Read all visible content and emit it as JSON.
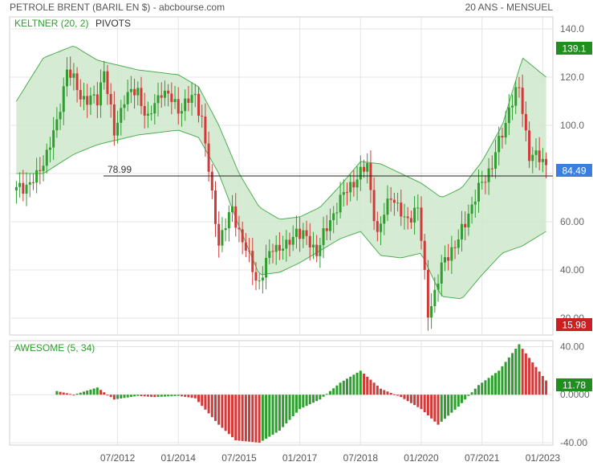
{
  "header": {
    "title": "PETROLE BRENT (BARIL EN $) - abcbourse.com",
    "period": "20 ANS - MENSUEL"
  },
  "indicators": {
    "keltner": "KELTNER (20, 2)",
    "pivots": "PIVOTS",
    "awesome": "AWESOME (5, 34)"
  },
  "colors": {
    "up": "#2e9e2e",
    "down": "#d23a3a",
    "band_fill": "#cfe8cb",
    "band_line": "#4caf50",
    "price_badge": "#3a7fe0",
    "max_badge": "#1f8f1f",
    "min_badge": "#cc1f1f",
    "ao_badge": "#1f8f1f",
    "grid": "#e4e4e4"
  },
  "chart_data": [
    {
      "type": "candlestick",
      "title": "PETROLE BRENT (BARIL EN $)",
      "x": [
        "07/2012",
        "01/2014",
        "07/2015",
        "01/2017",
        "07/2018",
        "01/2020",
        "07/2021",
        "01/2023"
      ],
      "y_ticks": [
        "20.00",
        "40.00",
        "60.00",
        "80.00",
        "100.0",
        "120.0",
        "140.0"
      ],
      "ylim": [
        13,
        145
      ],
      "grid": true,
      "pivot": {
        "label": "78.99",
        "value": 78.99
      },
      "badges": {
        "max": "139.1",
        "last": "84.49",
        "min": "15.98"
      },
      "close_series": [
        {
          "date": "2010-01",
          "value": 73
        },
        {
          "date": "2010-07",
          "value": 78
        },
        {
          "date": "2011-01",
          "value": 100
        },
        {
          "date": "2011-04",
          "value": 124
        },
        {
          "date": "2011-08",
          "value": 112
        },
        {
          "date": "2012-01",
          "value": 110
        },
        {
          "date": "2012-03",
          "value": 124
        },
        {
          "date": "2012-06",
          "value": 96
        },
        {
          "date": "2012-09",
          "value": 112
        },
        {
          "date": "2013-01",
          "value": 114
        },
        {
          "date": "2013-04",
          "value": 102
        },
        {
          "date": "2013-08",
          "value": 115
        },
        {
          "date": "2014-01",
          "value": 107
        },
        {
          "date": "2014-06",
          "value": 112
        },
        {
          "date": "2014-08",
          "value": 103
        },
        {
          "date": "2014-11",
          "value": 70
        },
        {
          "date": "2015-01",
          "value": 52
        },
        {
          "date": "2015-05",
          "value": 65
        },
        {
          "date": "2015-08",
          "value": 52
        },
        {
          "date": "2015-12",
          "value": 37
        },
        {
          "date": "2016-01",
          "value": 35
        },
        {
          "date": "2016-05",
          "value": 50
        },
        {
          "date": "2016-09",
          "value": 49
        },
        {
          "date": "2016-12",
          "value": 57
        },
        {
          "date": "2017-06",
          "value": 48
        },
        {
          "date": "2017-09",
          "value": 57
        },
        {
          "date": "2017-12",
          "value": 67
        },
        {
          "date": "2018-05",
          "value": 77
        },
        {
          "date": "2018-09",
          "value": 83
        },
        {
          "date": "2018-12",
          "value": 54
        },
        {
          "date": "2019-04",
          "value": 72
        },
        {
          "date": "2019-08",
          "value": 60
        },
        {
          "date": "2019-12",
          "value": 66
        },
        {
          "date": "2020-03",
          "value": 23
        },
        {
          "date": "2020-04",
          "value": 26
        },
        {
          "date": "2020-08",
          "value": 45
        },
        {
          "date": "2020-12",
          "value": 52
        },
        {
          "date": "2021-03",
          "value": 64
        },
        {
          "date": "2021-07",
          "value": 76
        },
        {
          "date": "2021-10",
          "value": 84
        },
        {
          "date": "2022-02",
          "value": 101
        },
        {
          "date": "2022-03",
          "value": 108
        },
        {
          "date": "2022-06",
          "value": 115
        },
        {
          "date": "2022-09",
          "value": 88
        },
        {
          "date": "2022-12",
          "value": 86
        },
        {
          "date": "2023-02",
          "value": 84.49
        }
      ],
      "keltner_upper": [
        {
          "date": "2010-01",
          "value": 110
        },
        {
          "date": "2010-09",
          "value": 128
        },
        {
          "date": "2011-06",
          "value": 133
        },
        {
          "date": "2012-01",
          "value": 127
        },
        {
          "date": "2013-01",
          "value": 123
        },
        {
          "date": "2014-01",
          "value": 121
        },
        {
          "date": "2014-07",
          "value": 116
        },
        {
          "date": "2015-01",
          "value": 100
        },
        {
          "date": "2015-07",
          "value": 80
        },
        {
          "date": "2016-01",
          "value": 66
        },
        {
          "date": "2016-07",
          "value": 61
        },
        {
          "date": "2017-01",
          "value": 62
        },
        {
          "date": "2017-07",
          "value": 66
        },
        {
          "date": "2018-01",
          "value": 75
        },
        {
          "date": "2018-07",
          "value": 85
        },
        {
          "date": "2019-01",
          "value": 84
        },
        {
          "date": "2019-07",
          "value": 80
        },
        {
          "date": "2020-01",
          "value": 76
        },
        {
          "date": "2020-07",
          "value": 70
        },
        {
          "date": "2021-01",
          "value": 74
        },
        {
          "date": "2021-07",
          "value": 85
        },
        {
          "date": "2022-01",
          "value": 100
        },
        {
          "date": "2022-07",
          "value": 128
        },
        {
          "date": "2023-02",
          "value": 120
        }
      ],
      "keltner_lower": [
        {
          "date": "2010-01",
          "value": 80
        },
        {
          "date": "2010-09",
          "value": 80
        },
        {
          "date": "2011-06",
          "value": 88
        },
        {
          "date": "2012-01",
          "value": 92
        },
        {
          "date": "2013-01",
          "value": 96
        },
        {
          "date": "2014-01",
          "value": 98
        },
        {
          "date": "2014-07",
          "value": 95
        },
        {
          "date": "2015-01",
          "value": 80
        },
        {
          "date": "2015-07",
          "value": 58
        },
        {
          "date": "2016-01",
          "value": 38
        },
        {
          "date": "2016-07",
          "value": 39
        },
        {
          "date": "2017-01",
          "value": 43
        },
        {
          "date": "2017-07",
          "value": 48
        },
        {
          "date": "2018-01",
          "value": 53
        },
        {
          "date": "2018-07",
          "value": 56
        },
        {
          "date": "2019-01",
          "value": 46
        },
        {
          "date": "2019-07",
          "value": 45
        },
        {
          "date": "2020-01",
          "value": 47
        },
        {
          "date": "2020-07",
          "value": 29
        },
        {
          "date": "2021-01",
          "value": 28
        },
        {
          "date": "2021-07",
          "value": 38
        },
        {
          "date": "2022-01",
          "value": 47
        },
        {
          "date": "2022-07",
          "value": 50
        },
        {
          "date": "2023-02",
          "value": 56
        }
      ]
    },
    {
      "type": "bar",
      "title": "AWESOME (5, 34)",
      "y_ticks": [
        "40.00",
        "0.0000",
        "-40.00"
      ],
      "ylim": [
        -42,
        45
      ],
      "badge": "11.78",
      "series": [
        {
          "date": "2011-01",
          "value": 3
        },
        {
          "date": "2011-06",
          "value": 0
        },
        {
          "date": "2012-01",
          "value": 6
        },
        {
          "date": "2012-06",
          "value": -4
        },
        {
          "date": "2013-01",
          "value": -1
        },
        {
          "date": "2013-06",
          "value": -2
        },
        {
          "date": "2014-01",
          "value": -1
        },
        {
          "date": "2014-06",
          "value": -3
        },
        {
          "date": "2015-01",
          "value": -25
        },
        {
          "date": "2015-06",
          "value": -38
        },
        {
          "date": "2016-01",
          "value": -40
        },
        {
          "date": "2016-07",
          "value": -30
        },
        {
          "date": "2017-01",
          "value": -12
        },
        {
          "date": "2017-07",
          "value": -4
        },
        {
          "date": "2018-01",
          "value": 10
        },
        {
          "date": "2018-07",
          "value": 20
        },
        {
          "date": "2019-01",
          "value": 5
        },
        {
          "date": "2019-07",
          "value": -2
        },
        {
          "date": "2020-01",
          "value": -12
        },
        {
          "date": "2020-06",
          "value": -25
        },
        {
          "date": "2020-12",
          "value": -10
        },
        {
          "date": "2021-06",
          "value": 8
        },
        {
          "date": "2021-12",
          "value": 20
        },
        {
          "date": "2022-06",
          "value": 42
        },
        {
          "date": "2023-02",
          "value": 11.78
        }
      ]
    }
  ]
}
